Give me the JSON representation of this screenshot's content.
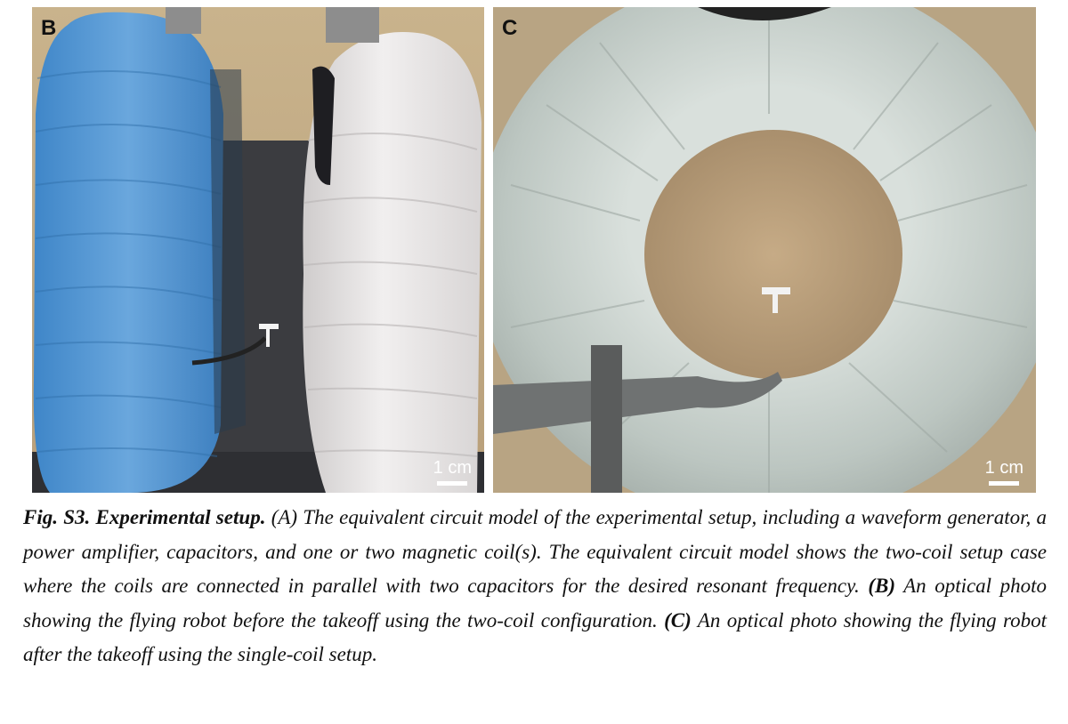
{
  "panel_b": {
    "letter": "B",
    "scale_label": "1 cm"
  },
  "panel_c": {
    "letter": "C",
    "scale_label": "1 cm"
  },
  "caption": {
    "fig_label": "Fig. S3. Experimental setup.",
    "a_label": "(A)",
    "a_text": " The equivalent circuit model of the experimental setup, including a waveform generator, a power amplifier, capacitors, and one or two magnetic coil(s). The equivalent circuit model shows the two-coil setup case where the coils are connected in parallel with two capacitors for the desired resonant frequency. ",
    "b_label": "(B)",
    "b_text": " An optical photo showing the flying robot before the takeoff using the two-coil configuration. ",
    "c_label": "(C)",
    "c_text": " An optical photo showing the flying robot after the takeoff using the single-coil setup."
  },
  "colors": {
    "blue_coil": "#5b9bd5",
    "white_coil": "#e9e6e6",
    "grey_coil": "#c7d0cb",
    "background_tan": "#c8b08e"
  }
}
